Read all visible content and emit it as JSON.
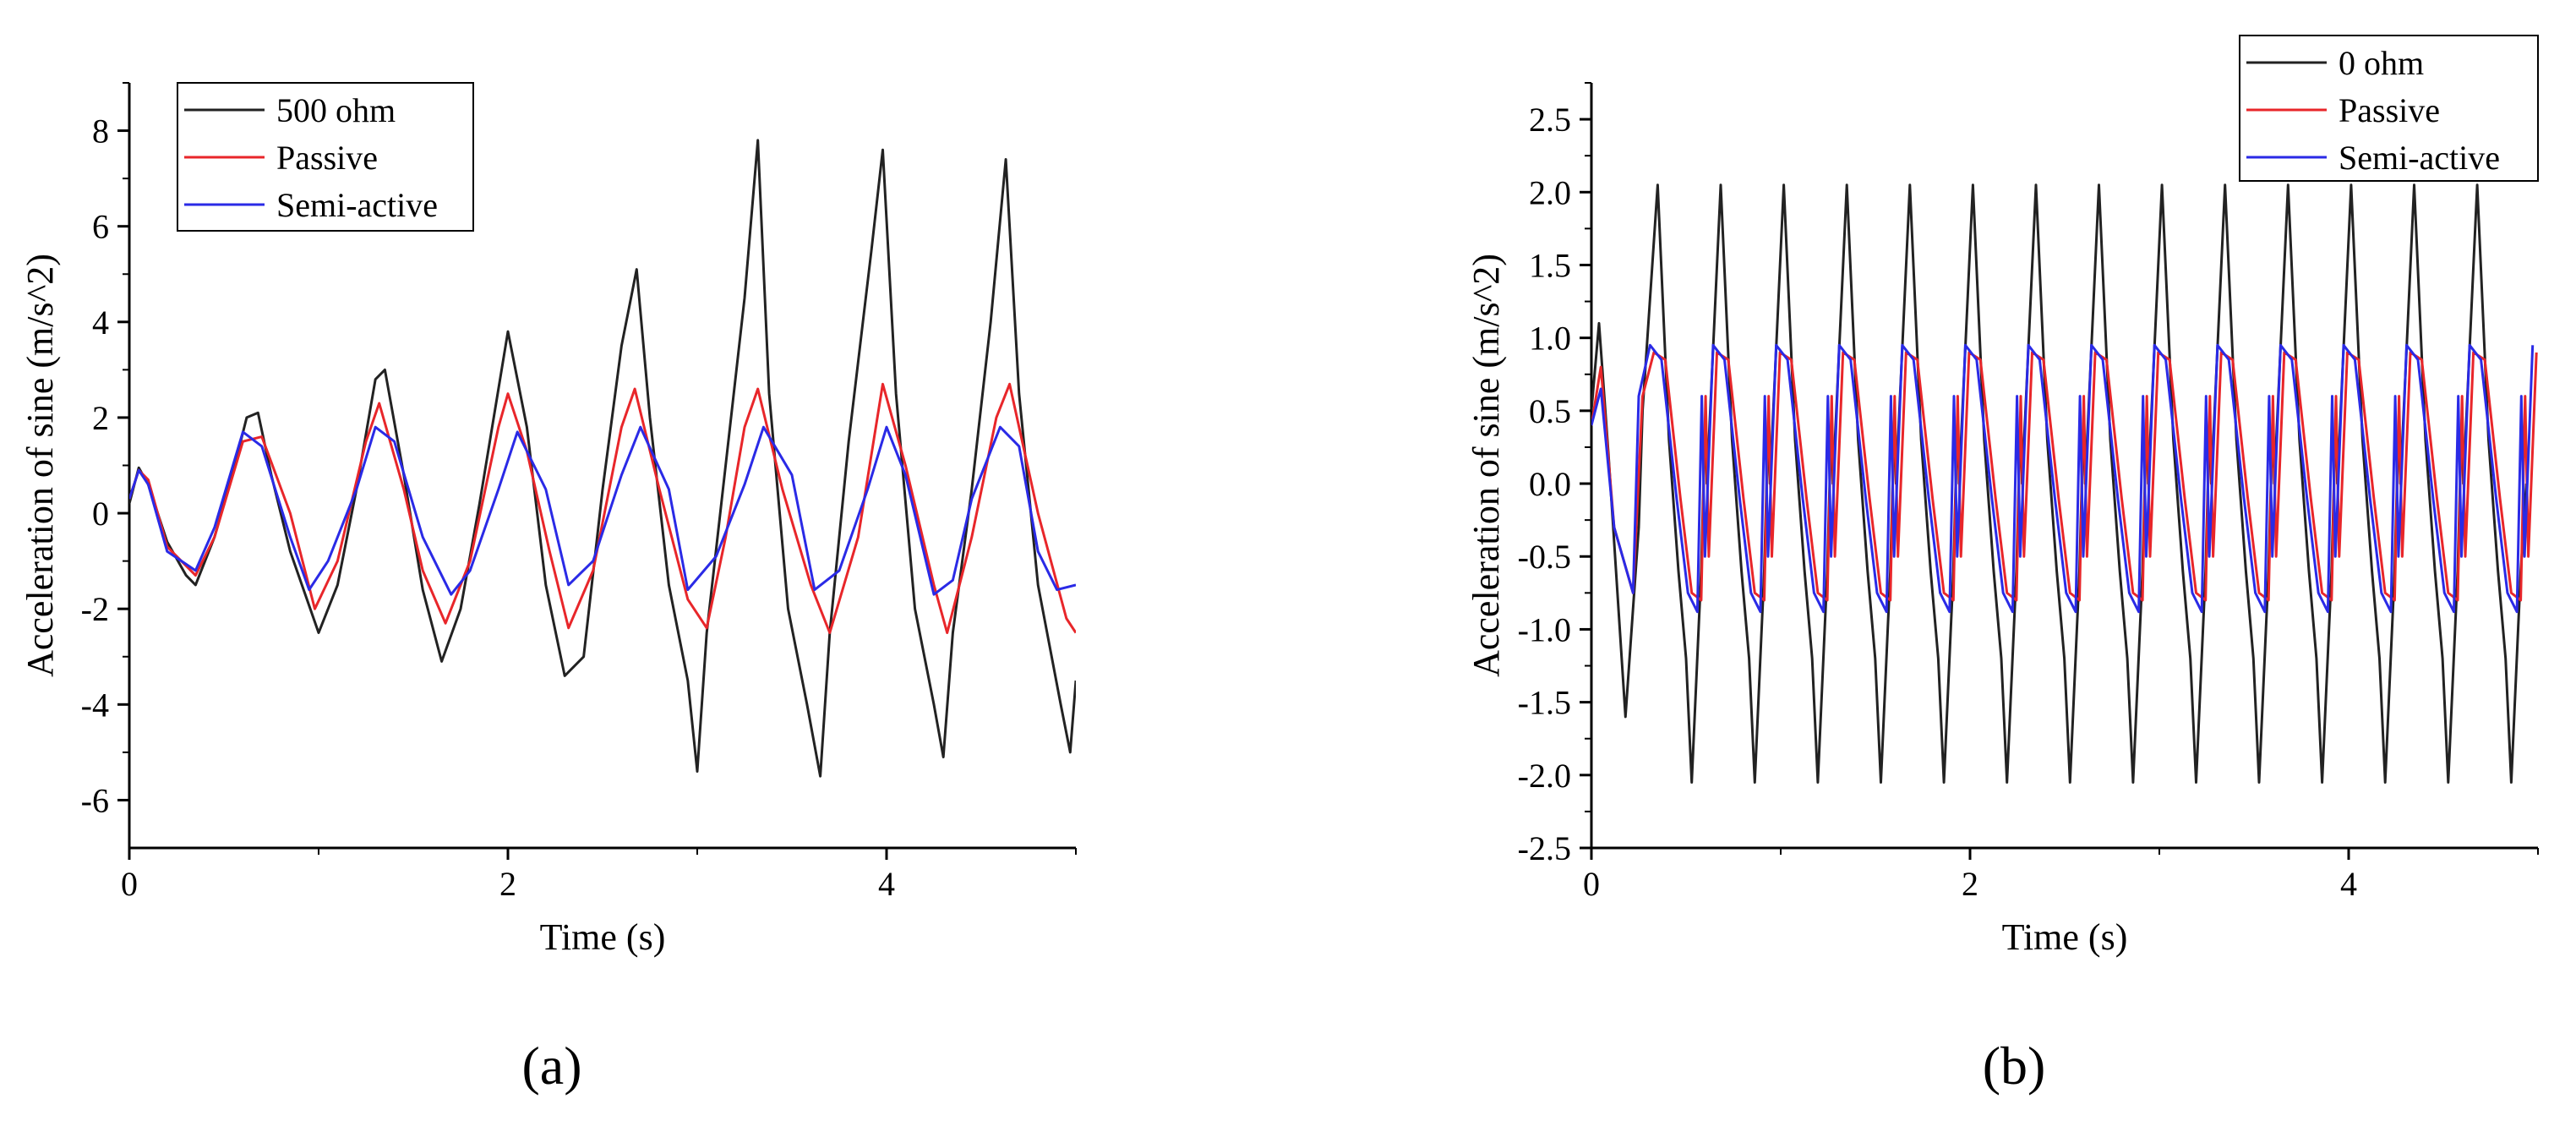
{
  "chart_data": [
    {
      "type": "line",
      "panel_label": "(a)",
      "xlabel": "Time (s)",
      "ylabel": "Acceleration of sine (m/s^2)",
      "xlim": [
        0,
        5
      ],
      "ylim": [
        -7,
        9
      ],
      "xticks": [
        0,
        2,
        4
      ],
      "yticks": [
        -6,
        -4,
        -2,
        0,
        2,
        4,
        6,
        8
      ],
      "legend_placement": "top-left",
      "grid": false,
      "series": [
        {
          "name": "500 ohm",
          "color": "#222222",
          "x": [
            0,
            0.05,
            0.1,
            0.2,
            0.3,
            0.35,
            0.45,
            0.55,
            0.62,
            0.68,
            0.75,
            0.85,
            1.0,
            1.1,
            1.2,
            1.3,
            1.35,
            1.45,
            1.55,
            1.65,
            1.75,
            1.85,
            2.0,
            2.1,
            2.2,
            2.3,
            2.4,
            2.5,
            2.6,
            2.68,
            2.75,
            2.85,
            2.95,
            3.0,
            3.05,
            3.15,
            3.25,
            3.32,
            3.38,
            3.48,
            3.58,
            3.65,
            3.7,
            3.8,
            3.92,
            3.98,
            4.05,
            4.15,
            4.25,
            4.3,
            4.35,
            4.45,
            4.55,
            4.63,
            4.7,
            4.8,
            4.92,
            4.97,
            5.0
          ],
          "values": [
            0.2,
            0.95,
            0.6,
            -0.6,
            -1.3,
            -1.5,
            -0.5,
            0.9,
            2.0,
            2.1,
            0.8,
            -0.8,
            -2.5,
            -1.5,
            0.5,
            2.8,
            3.0,
            0.8,
            -1.6,
            -3.1,
            -2.0,
            0.2,
            3.8,
            1.8,
            -1.5,
            -3.4,
            -3.0,
            0.5,
            3.5,
            5.1,
            2.0,
            -1.5,
            -3.5,
            -5.4,
            -2.5,
            1.0,
            4.5,
            7.8,
            2.5,
            -2.0,
            -4.0,
            -5.5,
            -2.5,
            1.5,
            5.5,
            7.6,
            2.5,
            -2.0,
            -4.0,
            -5.1,
            -2.5,
            0.5,
            4.0,
            7.4,
            2.5,
            -1.5,
            -4.0,
            -5.0,
            -3.5
          ]
        },
        {
          "name": "Passive",
          "color": "#e8262a",
          "x": [
            0,
            0.05,
            0.1,
            0.2,
            0.35,
            0.45,
            0.6,
            0.7,
            0.85,
            0.98,
            1.1,
            1.25,
            1.32,
            1.45,
            1.55,
            1.67,
            1.8,
            1.95,
            2.0,
            2.1,
            2.22,
            2.32,
            2.45,
            2.6,
            2.67,
            2.8,
            2.95,
            3.05,
            3.15,
            3.25,
            3.32,
            3.45,
            3.6,
            3.7,
            3.85,
            3.98,
            4.1,
            4.25,
            4.32,
            4.45,
            4.58,
            4.65,
            4.8,
            4.95,
            5.0
          ],
          "values": [
            0.3,
            0.9,
            0.7,
            -0.7,
            -1.3,
            -0.5,
            1.5,
            1.6,
            0.0,
            -2.0,
            -1.0,
            1.5,
            2.3,
            0.5,
            -1.2,
            -2.3,
            -1.0,
            1.8,
            2.5,
            1.3,
            -0.8,
            -2.4,
            -1.2,
            1.8,
            2.6,
            0.5,
            -1.8,
            -2.4,
            -0.5,
            1.8,
            2.6,
            0.5,
            -1.5,
            -2.5,
            -0.5,
            2.7,
            1.0,
            -1.5,
            -2.5,
            -0.5,
            2.0,
            2.7,
            0.0,
            -2.2,
            -2.5
          ]
        },
        {
          "name": "Semi-active",
          "color": "#2a2ae6",
          "x": [
            0,
            0.05,
            0.1,
            0.2,
            0.35,
            0.45,
            0.6,
            0.7,
            0.85,
            0.95,
            1.05,
            1.2,
            1.3,
            1.4,
            1.55,
            1.7,
            1.8,
            1.95,
            2.05,
            2.2,
            2.32,
            2.45,
            2.6,
            2.7,
            2.85,
            2.95,
            3.1,
            3.25,
            3.35,
            3.5,
            3.62,
            3.75,
            3.9,
            4.0,
            4.1,
            4.25,
            4.35,
            4.45,
            4.6,
            4.7,
            4.8,
            4.9,
            5.0
          ],
          "values": [
            0.3,
            0.9,
            0.6,
            -0.8,
            -1.2,
            -0.3,
            1.7,
            1.4,
            -0.5,
            -1.6,
            -1.0,
            0.5,
            1.8,
            1.5,
            -0.5,
            -1.7,
            -1.2,
            0.5,
            1.7,
            0.5,
            -1.5,
            -1.0,
            0.8,
            1.8,
            0.5,
            -1.6,
            -0.9,
            0.6,
            1.8,
            0.8,
            -1.6,
            -1.2,
            0.5,
            1.8,
            0.8,
            -1.7,
            -1.4,
            0.3,
            1.8,
            1.4,
            -0.8,
            -1.6,
            -1.5
          ]
        }
      ]
    },
    {
      "type": "line",
      "panel_label": "(b)",
      "xlabel": "Time (s)",
      "ylabel": "Acceleration of sine (m/s^2)",
      "xlim": [
        0,
        5
      ],
      "ylim": [
        -2.5,
        2.75
      ],
      "xticks": [
        0,
        2,
        4
      ],
      "yticks": [
        -2.5,
        -2.0,
        -1.5,
        -1.0,
        -0.5,
        0.0,
        0.5,
        1.0,
        1.5,
        2.0,
        2.5
      ],
      "legend_placement": "top-right",
      "grid": false,
      "periodic": {
        "period": 0.333,
        "cycles": 15
      },
      "series": [
        {
          "name": "0 ohm",
          "color": "#222222",
          "peak": 2.05,
          "trough": -2.05,
          "first_peak": 1.1,
          "first_trough": -1.6
        },
        {
          "name": "Passive",
          "color": "#e8262a",
          "peak": 0.9,
          "trough": -0.8,
          "first_peak": 0.8
        },
        {
          "name": "Semi-active",
          "color": "#2a2ae6",
          "peak": 0.95,
          "trough": -0.88,
          "first_peak": 0.65
        }
      ]
    }
  ]
}
